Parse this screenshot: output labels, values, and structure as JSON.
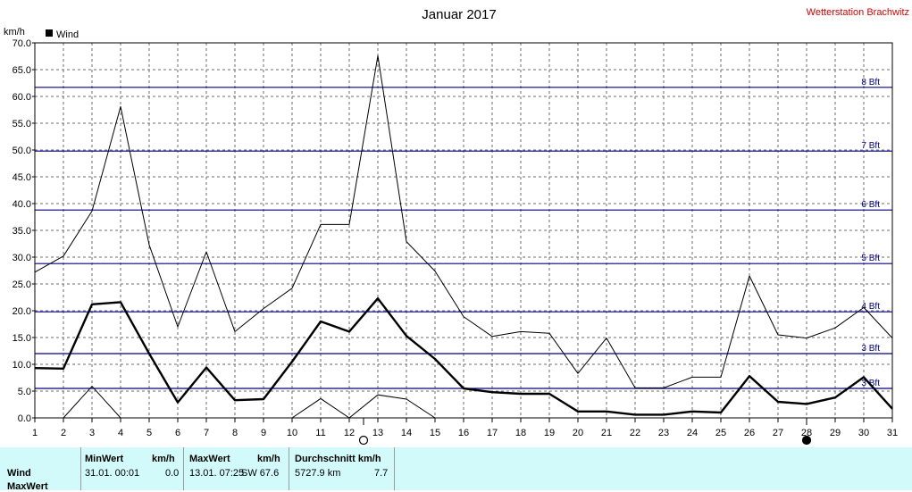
{
  "header": {
    "title": "Januar 2017",
    "station": "Wetterstation Brachwitz",
    "unit_label": "km/h",
    "legend_label": "Wind"
  },
  "chart_data": {
    "type": "line",
    "title": "Januar 2017",
    "ylabel": "km/h",
    "x": [
      1,
      2,
      3,
      4,
      5,
      6,
      7,
      8,
      9,
      10,
      11,
      12,
      13,
      14,
      15,
      16,
      17,
      18,
      19,
      20,
      21,
      22,
      23,
      24,
      25,
      26,
      27,
      28,
      29,
      30,
      31
    ],
    "ylim": [
      0,
      70
    ],
    "xlim": [
      1,
      31
    ],
    "y_ticks": [
      "0.0",
      "5.0",
      "10.0",
      "15.0",
      "20.0",
      "25.0",
      "30.0",
      "35.0",
      "40.0",
      "45.0",
      "50.0",
      "55.0",
      "60.0",
      "65.0",
      "70.0"
    ],
    "grid": true,
    "legend": "top-left",
    "series": [
      {
        "name": "Wind",
        "style": "bold",
        "values": [
          9.3,
          9.2,
          21.2,
          21.6,
          12.0,
          2.9,
          9.4,
          3.3,
          3.5,
          10.5,
          18.0,
          16.1,
          22.3,
          15.3,
          11.0,
          5.5,
          4.8,
          4.5,
          4.5,
          1.2,
          1.2,
          0.6,
          0.6,
          1.2,
          1.0,
          7.8,
          3.0,
          2.6,
          3.8,
          7.6,
          1.7
        ]
      },
      {
        "style": "thin",
        "values": [
          27.2,
          30.2,
          38.6,
          58.1,
          32.3,
          17.0,
          31.0,
          16.1,
          20.4,
          24.2,
          36.1,
          36.1,
          67.6,
          32.9,
          27.4,
          18.9,
          15.2,
          16.1,
          15.8,
          8.3,
          14.9,
          5.6,
          5.6,
          7.6,
          7.6,
          26.5,
          15.5,
          14.9,
          16.8,
          20.6,
          14.9
        ]
      },
      {
        "style": "thin",
        "segment": "partial",
        "x": [
          2,
          3,
          4,
          10,
          11,
          12,
          13,
          14,
          15
        ],
        "values": [
          0.0,
          5.9,
          0.0,
          0.0,
          3.6,
          0.0,
          4.3,
          3.5,
          0.0
        ]
      }
    ],
    "beaufort_lines": [
      {
        "value": 5.5,
        "label": "3 Bft"
      },
      {
        "value": 12.0,
        "label": "3 Bft"
      },
      {
        "value": 19.8,
        "label": "4 Bft"
      },
      {
        "value": 28.8,
        "label": "5 Bft"
      },
      {
        "value": 38.8,
        "label": "6 Bft"
      },
      {
        "value": 49.8,
        "label": "7 Bft"
      },
      {
        "value": 61.7,
        "label": "8 Bft"
      }
    ],
    "moon_phases": [
      {
        "day": 12.5,
        "phase": "full"
      },
      {
        "day": 28,
        "phase": "new"
      }
    ]
  },
  "summary": {
    "row_label_1": "Wind",
    "row_label_2": "MaxWert",
    "min_header": "MinWert",
    "min_unit": "km/h",
    "min_date": "31.01.  00:01",
    "min_value": "0.0",
    "max_header": "MaxWert",
    "max_unit": "km/h",
    "max_date": "13.01.  07:25",
    "max_value": "SW 67.6",
    "avg_header": "Durchschnitt km/h",
    "avg_distance": "5727.9 km",
    "avg_value": "7.7"
  }
}
